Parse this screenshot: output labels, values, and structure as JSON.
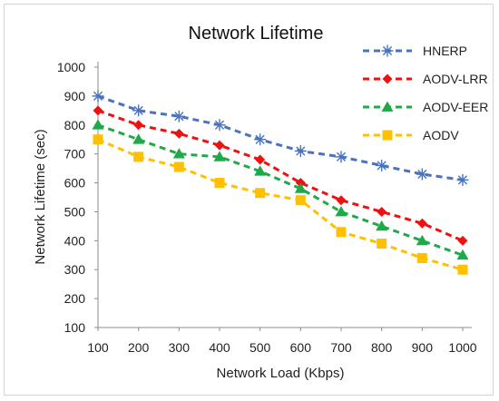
{
  "chart_data": {
    "type": "line",
    "title": "Network Lifetime",
    "xlabel": "Network Load (Kbps)",
    "ylabel": "Network Lifetime (sec)",
    "x": [
      100,
      200,
      300,
      400,
      500,
      600,
      700,
      800,
      900,
      1000
    ],
    "ylim": [
      100,
      1000
    ],
    "yticks": [
      100,
      200,
      300,
      400,
      500,
      600,
      700,
      800,
      900,
      1000
    ],
    "grid": false,
    "legend_position": "top-right",
    "series": [
      {
        "name": "HNERP",
        "color": "#4a73be",
        "marker": "asterisk",
        "values": [
          900,
          850,
          830,
          800,
          750,
          710,
          690,
          660,
          630,
          610
        ]
      },
      {
        "name": "AODV-LRR",
        "color": "#ee1111",
        "marker": "diamond",
        "values": [
          850,
          800,
          770,
          730,
          680,
          600,
          540,
          500,
          460,
          400
        ]
      },
      {
        "name": "AODV-EER",
        "color": "#1faa4a",
        "marker": "triangle",
        "values": [
          800,
          750,
          700,
          690,
          640,
          580,
          500,
          450,
          400,
          350
        ]
      },
      {
        "name": "AODV",
        "color": "#ffc000",
        "marker": "square",
        "values": [
          750,
          690,
          655,
          600,
          565,
          540,
          430,
          390,
          340,
          300
        ]
      }
    ]
  }
}
